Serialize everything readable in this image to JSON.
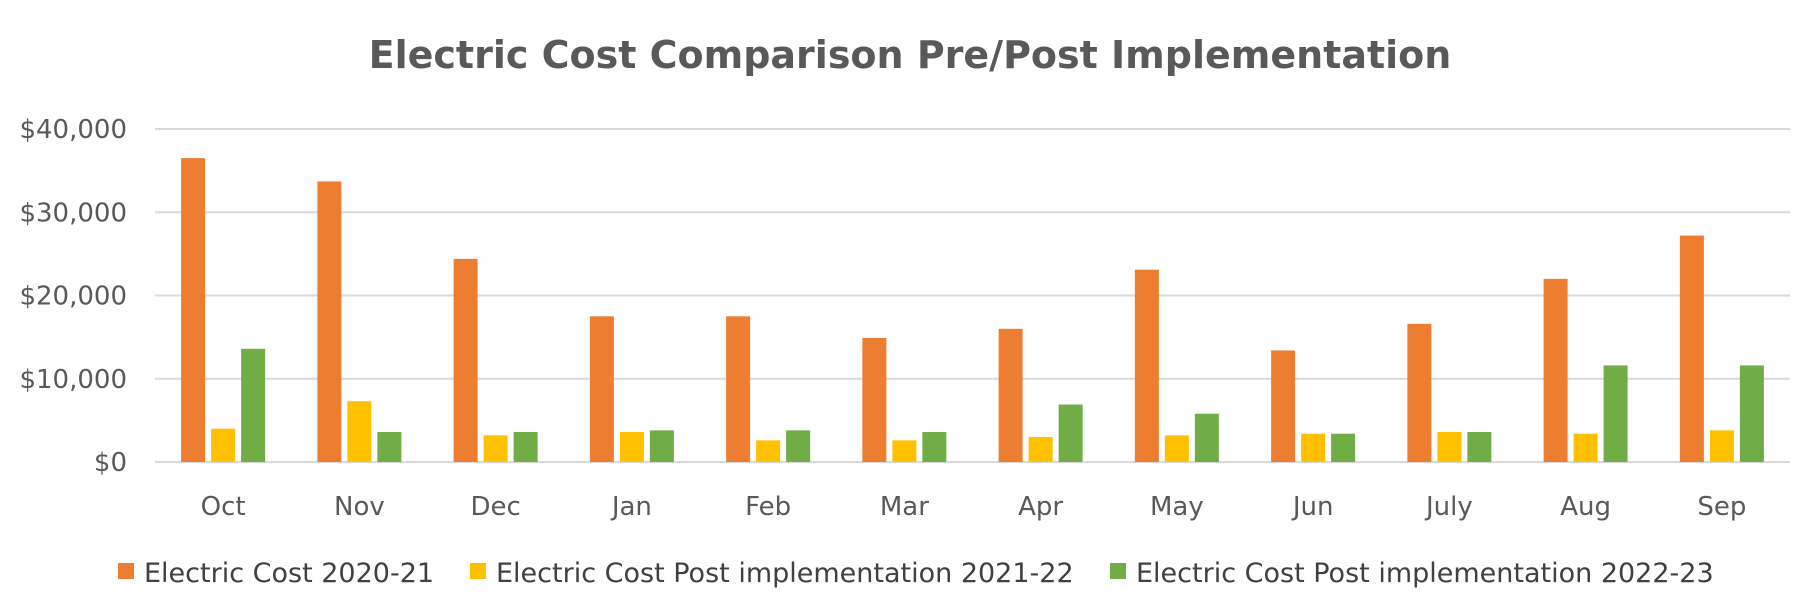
{
  "chart_data": {
    "type": "bar",
    "title": "Electric Cost Comparison Pre/Post Implementation",
    "xlabel": "",
    "ylabel": "",
    "ylim": [
      0,
      40000
    ],
    "ytick_values": [
      0,
      10000,
      20000,
      30000,
      40000
    ],
    "ytick_labels": [
      "$0",
      "$10,000",
      "$20,000",
      "$30,000",
      "$40,000"
    ],
    "grid": true,
    "legend_position": "bottom",
    "categories": [
      "Oct",
      "Nov",
      "Dec",
      "Jan",
      "Feb",
      "Mar",
      "Apr",
      "May",
      "Jun",
      "July",
      "Aug",
      "Sep"
    ],
    "series": [
      {
        "name": "Electric Cost 2020-21",
        "color": "#ED7D31",
        "values": [
          36500,
          33700,
          24400,
          17500,
          17500,
          14900,
          16000,
          23100,
          13400,
          16600,
          22000,
          27200
        ]
      },
      {
        "name": "Electric Cost Post implementation 2021-22",
        "color": "#FFC000",
        "values": [
          4000,
          7300,
          3200,
          3600,
          2600,
          2600,
          3000,
          3200,
          3400,
          3600,
          3400,
          3800
        ]
      },
      {
        "name": "Electric Cost Post implementation 2022-23",
        "color": "#70AD47",
        "values": [
          13600,
          3600,
          3600,
          3800,
          3800,
          3600,
          6900,
          5800,
          3400,
          3600,
          11600,
          11600
        ]
      }
    ]
  }
}
